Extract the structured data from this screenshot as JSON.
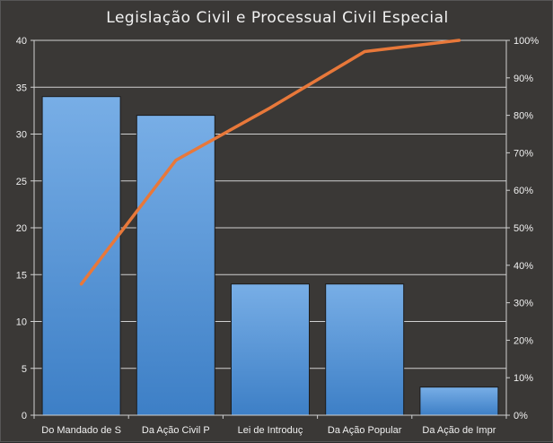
{
  "chart_data": {
    "type": "bar",
    "title": "Legislação Civil e Processual Civil Especial",
    "xlabel": "",
    "ylabel": "",
    "categories": [
      "Do Mandado de S",
      "Da Ação Civil P",
      "Lei de Introduç",
      "Da Ação Popular",
      "Da Ação de Impr"
    ],
    "series": [
      {
        "type": "bar",
        "axis": "left",
        "values": [
          34,
          32,
          14,
          14,
          3
        ]
      },
      {
        "type": "line",
        "axis": "right",
        "values": [
          35,
          68,
          82,
          97,
          100
        ]
      }
    ],
    "ylim": [
      0,
      40
    ],
    "y_ticks": [
      0,
      5,
      10,
      15,
      20,
      25,
      30,
      35,
      40
    ],
    "y2lim": [
      0,
      100
    ],
    "y2_ticks": [
      "0%",
      "10%",
      "20%",
      "30%",
      "40%",
      "50%",
      "60%",
      "70%",
      "80%",
      "90%",
      "100%"
    ],
    "grid": true,
    "legend": "none",
    "colors": {
      "background": "#3a3836",
      "bar_top": "#78aee6",
      "bar_bottom": "#3d7fc6",
      "bar_edge": "#1c1c1c",
      "line": "#e8783a",
      "grid": "#d0d0d0",
      "text": "#f0f0f0"
    }
  }
}
